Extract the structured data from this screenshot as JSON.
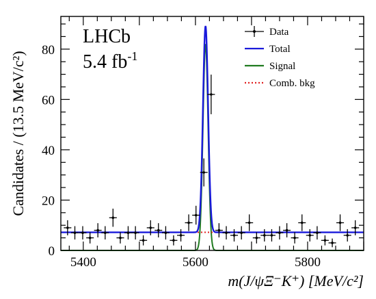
{
  "chart_data": {
    "type": "scatter",
    "experiment": "LHCb",
    "luminosity": "5.4 fb",
    "luminosity_exp": "-1",
    "xlabel": "m(J/ψΞ⁻K⁺) [MeV/c²]",
    "ylabel": "Candidates / (13.5 MeV/c²)",
    "xlim": [
      5360,
      5900
    ],
    "ylim": [
      0,
      93
    ],
    "x_ticks": [
      5400,
      5600,
      5800
    ],
    "y_ticks": [
      0,
      20,
      40,
      60,
      80
    ],
    "legend_position": "top-right",
    "legend": [
      {
        "label": "Data",
        "style": "points-errorbars",
        "color": "#000000"
      },
      {
        "label": "Total",
        "style": "solid",
        "color": "#1a1adb"
      },
      {
        "label": "Signal",
        "style": "solid",
        "color": "#1f7a1f"
      },
      {
        "label": "Comb. bkg",
        "style": "dotted",
        "color": "#e02020"
      }
    ],
    "data": {
      "x": [
        5372,
        5385,
        5399,
        5412,
        5426,
        5439,
        5453,
        5466,
        5480,
        5493,
        5507,
        5520,
        5534,
        5547,
        5561,
        5574,
        5588,
        5601,
        5615,
        5628,
        5642,
        5655,
        5669,
        5682,
        5696,
        5709,
        5723,
        5736,
        5750,
        5763,
        5777,
        5790,
        5804,
        5817,
        5831,
        5844,
        5858,
        5871,
        5885
      ],
      "y": [
        9,
        7,
        7,
        5,
        8,
        7,
        13,
        5,
        7,
        7,
        4,
        9,
        8,
        7,
        4,
        6,
        11,
        14,
        31,
        62,
        8,
        7,
        6,
        7,
        11,
        5,
        6,
        6,
        7,
        8,
        5,
        11,
        6,
        7,
        4,
        3,
        11,
        6,
        9
      ]
    },
    "model": {
      "background_level": 7.2,
      "signal_mean": 5618,
      "signal_sigma": 4.6,
      "signal_peak": 82
    }
  }
}
